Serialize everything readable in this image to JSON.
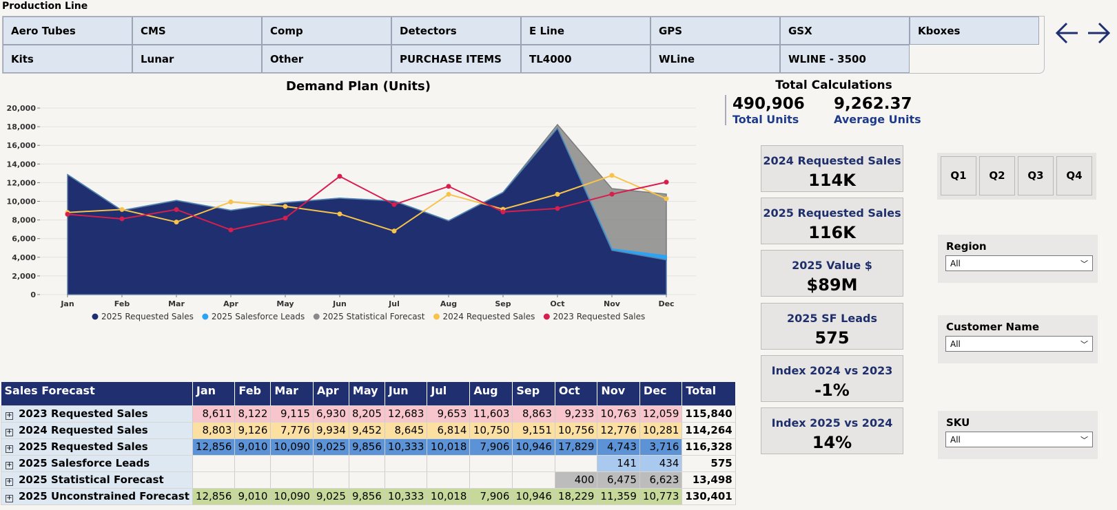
{
  "production_line": {
    "title": "Production Line",
    "row1": [
      "Aero Tubes",
      "CMS",
      "Comp",
      "Detectors",
      "E Line",
      "GPS",
      "GSX",
      "Kboxes"
    ],
    "row2": [
      "Kits",
      "Lunar",
      "Other",
      "PURCHASE ITEMS",
      "TL4000",
      "WLine",
      "WLINE - 3500",
      ""
    ]
  },
  "chart_title": "Demand Plan (Units)",
  "colors": {
    "requested_2025": "#1f2f6f",
    "salesforce_2025": "#2ea3f2",
    "statistical_2025": "#8a8a8a",
    "requested_2024": "#f7c34a",
    "requested_2023": "#d61f4f"
  },
  "chart_data": {
    "type": "area",
    "title": "Demand Plan (Units)",
    "x": [
      "Jan",
      "Feb",
      "Mar",
      "Apr",
      "May",
      "Jun",
      "Jul",
      "Aug",
      "Sep",
      "Oct",
      "Nov",
      "Dec"
    ],
    "ylim": [
      0,
      20000
    ],
    "yticks": [
      "0",
      "2,000",
      "4,000",
      "6,000",
      "8,000",
      "10,000",
      "12,000",
      "14,000",
      "16,000",
      "18,000",
      "20,000"
    ],
    "legend": "bottom",
    "series": [
      {
        "name": "2025 Requested Sales",
        "kind": "area",
        "values": [
          12856,
          9010,
          10090,
          9025,
          9856,
          10333,
          10018,
          7906,
          10946,
          17829,
          4743,
          3716
        ]
      },
      {
        "name": "2025 Salesforce Leads",
        "kind": "area",
        "values": [
          0,
          0,
          0,
          0,
          0,
          0,
          0,
          0,
          0,
          0,
          141,
          434
        ]
      },
      {
        "name": "2025 Statistical Forecast",
        "kind": "area",
        "values": [
          0,
          0,
          0,
          0,
          0,
          0,
          0,
          0,
          0,
          400,
          6475,
          6623
        ]
      },
      {
        "name": "2024 Requested Sales",
        "kind": "line",
        "values": [
          8803,
          9126,
          7776,
          9934,
          9452,
          8645,
          6814,
          10750,
          9151,
          10756,
          12776,
          10281
        ]
      },
      {
        "name": "2023 Requested Sales",
        "kind": "line",
        "values": [
          8611,
          8122,
          9115,
          6930,
          8205,
          12683,
          9653,
          11603,
          8863,
          9233,
          10763,
          12059
        ]
      }
    ]
  },
  "total_calc": {
    "title": "Total Calculations",
    "total_units": "490,906",
    "total_units_label": "Total Units",
    "avg_units": "9,262.37",
    "avg_units_label": "Average Units"
  },
  "cards": [
    {
      "label": "2024 Requested Sales",
      "value": "114K"
    },
    {
      "label": "2025 Requested Sales",
      "value": "116K"
    },
    {
      "label": "2025 Value $",
      "value": "$89M"
    },
    {
      "label": "2025 SF Leads",
      "value": "575"
    },
    {
      "label": "Index 2024 vs 2023",
      "value": "-1%"
    },
    {
      "label": "Index 2025 vs 2024",
      "value": "14%"
    }
  ],
  "quarters": [
    "Q1",
    "Q2",
    "Q3",
    "Q4"
  ],
  "slicers": [
    {
      "label": "Region",
      "value": "All"
    },
    {
      "label": "Customer Name",
      "value": "All"
    },
    {
      "label": "SKU",
      "value": "All"
    }
  ],
  "matrix": {
    "corner": "Sales Forecast",
    "months": [
      "Jan",
      "Feb",
      "Mar",
      "Apr",
      "May",
      "Jun",
      "Jul",
      "Aug",
      "Sep",
      "Oct",
      "Nov",
      "Dec"
    ],
    "total_header": "Total",
    "rows": [
      {
        "label": "2023 Requested Sales",
        "cls": "r2023",
        "values": [
          "8,611",
          "8,122",
          "9,115",
          "6,930",
          "8,205",
          "12,683",
          "9,653",
          "11,603",
          "8,863",
          "9,233",
          "10,763",
          "12,059"
        ],
        "total": "115,840"
      },
      {
        "label": "2024 Requested Sales",
        "cls": "r2024",
        "values": [
          "8,803",
          "9,126",
          "7,776",
          "9,934",
          "9,452",
          "8,645",
          "6,814",
          "10,750",
          "9,151",
          "10,756",
          "12,776",
          "10,281"
        ],
        "total": "114,264"
      },
      {
        "label": "2025 Requested Sales",
        "cls": "r2025",
        "values": [
          "12,856",
          "9,010",
          "10,090",
          "9,025",
          "9,856",
          "10,333",
          "10,018",
          "7,906",
          "10,946",
          "17,829",
          "4,743",
          "3,716"
        ],
        "total": "116,328"
      },
      {
        "label": "2025 Salesforce Leads",
        "cls": "rsf",
        "values": [
          "",
          "",
          "",
          "",
          "",
          "",
          "",
          "",
          "",
          "",
          "141",
          "434"
        ],
        "total": "575"
      },
      {
        "label": "2025 Statistical Forecast",
        "cls": "rstat",
        "values": [
          "",
          "",
          "",
          "",
          "",
          "",
          "",
          "",
          "",
          "400",
          "6,475",
          "6,623"
        ],
        "total": "13,498"
      },
      {
        "label": "2025 Unconstrained Forecast",
        "cls": "runc",
        "values": [
          "12,856",
          "9,010",
          "10,090",
          "9,025",
          "9,856",
          "10,333",
          "10,018",
          "7,906",
          "10,946",
          "18,229",
          "11,359",
          "10,773"
        ],
        "total": "130,401"
      }
    ]
  }
}
